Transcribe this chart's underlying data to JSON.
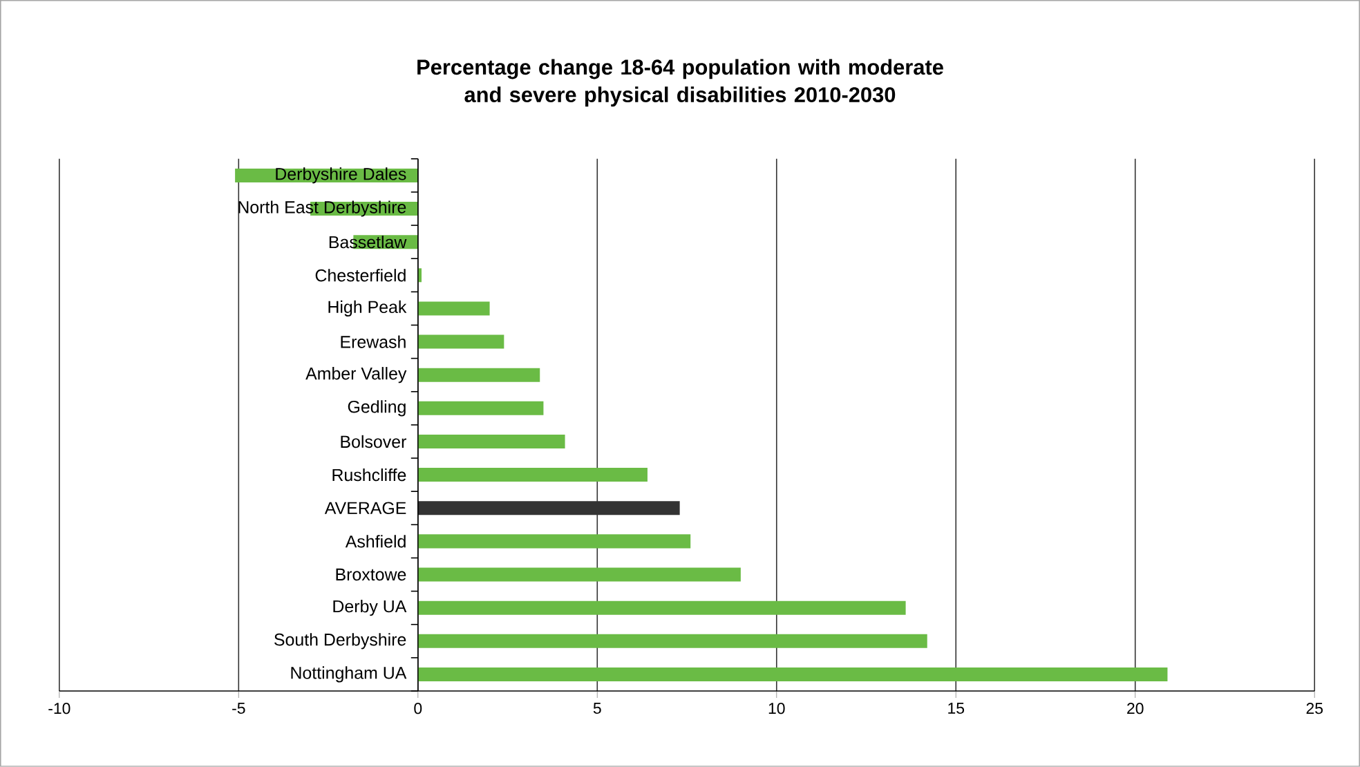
{
  "chart_data": {
    "type": "bar",
    "orientation": "horizontal",
    "title": "Percentage change 18-64 population with moderate and severe physical disabilities 2010-2030",
    "categories": [
      "Derbyshire Dales",
      "North East Derbyshire",
      "Bassetlaw",
      "Chesterfield",
      "High Peak",
      "Erewash",
      "Amber Valley",
      "Gedling",
      "Bolsover",
      "Rushcliffe",
      "AVERAGE",
      "Ashfield",
      "Broxtowe",
      "Derby UA",
      "South Derbyshire",
      "Nottingham UA"
    ],
    "values": [
      -5.1,
      -3.0,
      -1.8,
      0.1,
      2.0,
      2.4,
      3.4,
      3.5,
      4.1,
      6.4,
      7.3,
      7.6,
      9.0,
      13.6,
      14.2,
      20.9
    ],
    "colors": [
      "#6abb45",
      "#6abb45",
      "#6abb45",
      "#6abb45",
      "#6abb45",
      "#6abb45",
      "#6abb45",
      "#6abb45",
      "#6abb45",
      "#6abb45",
      "#333333",
      "#6abb45",
      "#6abb45",
      "#6abb45",
      "#6abb45",
      "#6abb45"
    ],
    "xlim": [
      -10,
      25
    ],
    "xticks": [
      -10,
      -5,
      0,
      5,
      10,
      15,
      20,
      25
    ],
    "grid": "x"
  }
}
